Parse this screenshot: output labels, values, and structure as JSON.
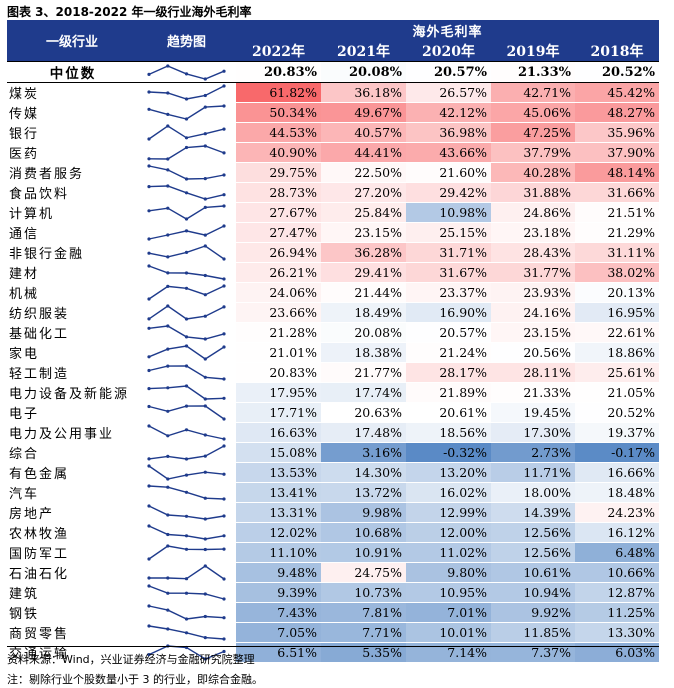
{
  "title": "图表 3、2018-2022 年一级行业海外毛利率",
  "header": {
    "industry_col": "一级行业",
    "trend_col": "趋势图",
    "group": "海外毛利率",
    "years": [
      "2022年",
      "2021年",
      "2020年",
      "2019年",
      "2018年"
    ]
  },
  "median_row": {
    "name": "中位数",
    "values": [
      20.83,
      20.08,
      20.57,
      21.33,
      20.52
    ]
  },
  "rows": [
    {
      "name": "煤炭",
      "values": [
        61.82,
        36.18,
        26.57,
        42.71,
        45.42
      ]
    },
    {
      "name": "传媒",
      "values": [
        50.34,
        49.67,
        42.12,
        45.06,
        48.27
      ]
    },
    {
      "name": "银行",
      "values": [
        44.53,
        40.57,
        36.98,
        47.25,
        35.96
      ]
    },
    {
      "name": "医药",
      "values": [
        40.9,
        44.41,
        43.66,
        37.79,
        37.9
      ]
    },
    {
      "name": "消费者服务",
      "values": [
        29.75,
        22.5,
        21.6,
        40.28,
        48.14
      ]
    },
    {
      "name": "食品饮料",
      "values": [
        28.73,
        27.2,
        29.42,
        31.88,
        31.66
      ]
    },
    {
      "name": "计算机",
      "values": [
        27.67,
        25.84,
        10.98,
        24.86,
        21.51
      ]
    },
    {
      "name": "通信",
      "values": [
        27.47,
        23.15,
        25.15,
        23.18,
        21.29
      ]
    },
    {
      "name": "非银行金融",
      "values": [
        26.94,
        36.28,
        31.71,
        28.43,
        31.11
      ]
    },
    {
      "name": "建材",
      "values": [
        26.21,
        29.41,
        31.67,
        31.77,
        38.02
      ]
    },
    {
      "name": "机械",
      "values": [
        24.06,
        21.44,
        23.37,
        23.93,
        20.13
      ]
    },
    {
      "name": "纺织服装",
      "values": [
        23.66,
        18.49,
        16.9,
        24.16,
        16.95
      ]
    },
    {
      "name": "基础化工",
      "values": [
        21.28,
        20.08,
        20.57,
        23.15,
        22.61
      ]
    },
    {
      "name": "家电",
      "values": [
        21.01,
        18.38,
        21.24,
        20.56,
        18.86
      ]
    },
    {
      "name": "轻工制造",
      "values": [
        20.83,
        21.77,
        28.17,
        28.11,
        25.61
      ]
    },
    {
      "name": "电力设备及新能源",
      "values": [
        17.95,
        17.74,
        21.89,
        21.33,
        21.05
      ]
    },
    {
      "name": "电子",
      "values": [
        17.71,
        20.63,
        20.61,
        19.45,
        20.52
      ]
    },
    {
      "name": "电力及公用事业",
      "values": [
        16.63,
        17.48,
        18.56,
        17.3,
        19.37
      ]
    },
    {
      "name": "综合",
      "values": [
        15.08,
        3.16,
        -0.32,
        2.73,
        -0.17
      ]
    },
    {
      "name": "有色金属",
      "values": [
        13.53,
        14.3,
        13.2,
        11.71,
        16.66
      ]
    },
    {
      "name": "汽车",
      "values": [
        13.41,
        13.72,
        16.02,
        18.0,
        18.48
      ]
    },
    {
      "name": "房地产",
      "values": [
        13.31,
        9.98,
        12.99,
        14.39,
        24.23
      ]
    },
    {
      "name": "农林牧渔",
      "values": [
        12.02,
        10.68,
        12.0,
        12.56,
        16.12
      ]
    },
    {
      "name": "国防军工",
      "values": [
        11.1,
        10.91,
        11.02,
        12.56,
        6.48
      ]
    },
    {
      "name": "石油石化",
      "values": [
        9.48,
        24.75,
        9.8,
        10.61,
        10.66
      ]
    },
    {
      "name": "建筑",
      "values": [
        9.39,
        10.73,
        10.95,
        10.94,
        12.87
      ]
    },
    {
      "name": "钢铁",
      "values": [
        7.43,
        7.81,
        7.01,
        9.92,
        11.25
      ]
    },
    {
      "name": "商贸零售",
      "values": [
        7.05,
        7.71,
        10.01,
        11.85,
        13.3
      ]
    },
    {
      "name": "交通运输",
      "values": [
        6.51,
        5.35,
        7.14,
        7.37,
        6.03
      ]
    }
  ],
  "colors": {
    "header_bg": "#1f3b8c",
    "high": "#f8696b",
    "mid": "#ffffff",
    "low": "#5a8ac6",
    "sparkline": "#1f3b8c"
  },
  "source": "资料来源：Wind，兴业证券经济与金融研究院整理",
  "note": "注：剔除行业个股数量小于 3 的行业，即综合金融。"
}
